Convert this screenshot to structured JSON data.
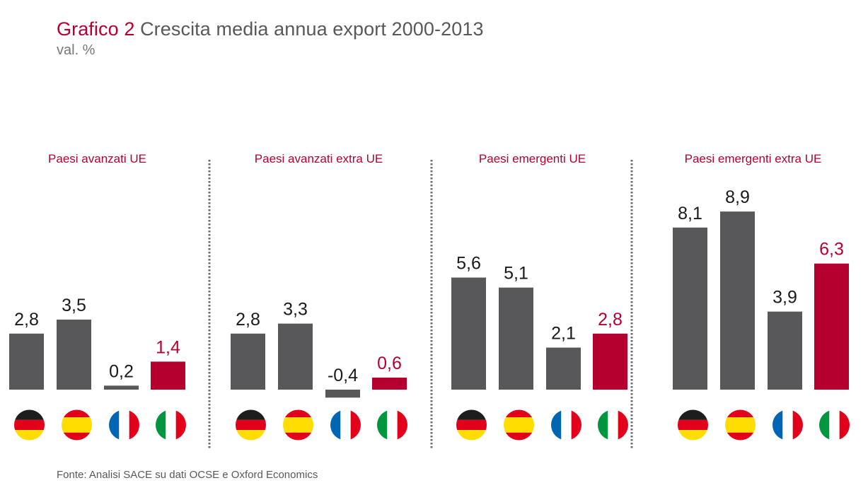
{
  "header": {
    "title_number": "Grafico 2",
    "title_text": "Crescita media annua export 2000-2013",
    "subtitle": "val. %"
  },
  "footer": {
    "source": "Fonte: Analisi SACE su dati OCSE e Oxford Economics"
  },
  "colors": {
    "accent": "#b5002f",
    "bar_default": "#58585a",
    "text_dark": "#1a1a1a"
  },
  "chart_data": {
    "type": "bar",
    "title": "Grafico 2 Crescita media annua export 2000-2013",
    "subtitle": "val. %",
    "ylabel": "val. %",
    "xlabel": "",
    "ylim": [
      -0.4,
      8.9
    ],
    "grid": false,
    "legend": "flags below each bar",
    "decimal_separator": ",",
    "categories": [
      "Germania",
      "Spagna",
      "Francia",
      "Italia"
    ],
    "flags": [
      "germany",
      "spain",
      "france",
      "italy"
    ],
    "highlight_category": "Italia",
    "panels": [
      {
        "label": "Paesi avanzati UE",
        "values": [
          2.8,
          3.5,
          0.2,
          1.4
        ]
      },
      {
        "label": "Paesi avanzati extra UE",
        "values": [
          2.8,
          3.3,
          -0.4,
          0.6
        ]
      },
      {
        "label": "Paesi emergenti UE",
        "values": [
          5.6,
          5.1,
          2.1,
          2.8
        ]
      },
      {
        "label": "Paesi emergenti extra UE",
        "values": [
          8.1,
          8.9,
          3.9,
          6.3
        ]
      }
    ]
  }
}
